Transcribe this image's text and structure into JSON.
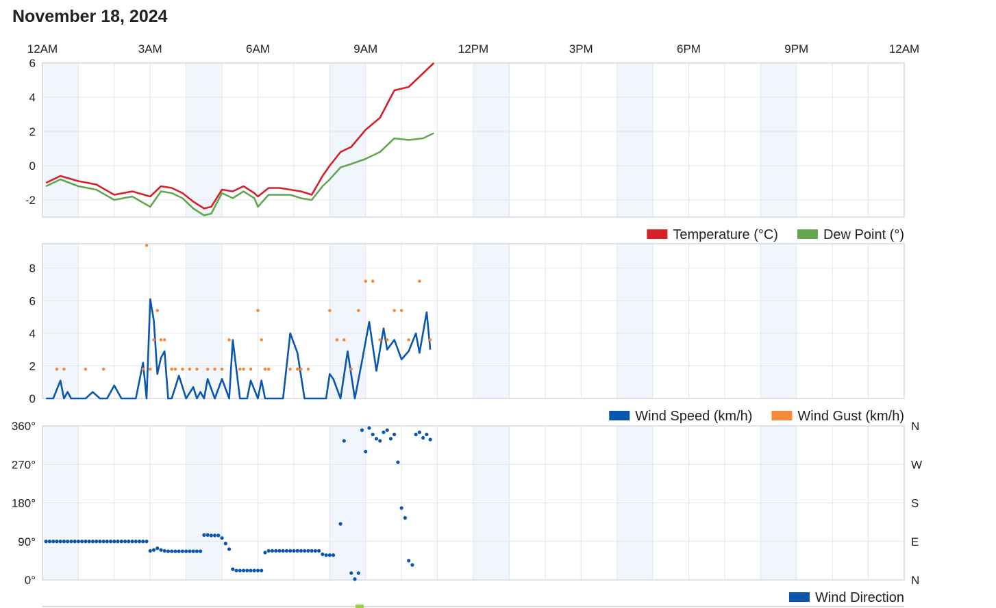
{
  "page": {
    "title": "November 18, 2024"
  },
  "colors": {
    "temperature": "#d42027",
    "dew_point": "#64a550",
    "wind_speed": "#0a56ad",
    "wind_gust": "#f58a3c",
    "wind_direction": "#0a56ad",
    "band": "#f0f6fb",
    "grid": "#e2e5e9",
    "border": "#d6d9dd"
  },
  "chart_data": [
    {
      "type": "line",
      "xlim": [
        0,
        24
      ],
      "x_ticks": [
        0,
        3,
        6,
        9,
        12,
        15,
        18,
        21,
        24
      ],
      "x_tick_labels": [
        "12AM",
        "3AM",
        "6AM",
        "9AM",
        "12PM",
        "3PM",
        "6PM",
        "9PM",
        "12AM"
      ],
      "ylim": [
        -3,
        6
      ],
      "y_ticks": [
        -2,
        0,
        2,
        4,
        6
      ],
      "y_tick_labels": [
        "-2",
        "0",
        "2",
        "4",
        "6"
      ],
      "legend": [
        "Temperature (°C)",
        "Dew Point (°)"
      ],
      "legend_position": "bottom-right",
      "series": [
        {
          "name": "Temperature (°C)",
          "x": [
            0.1,
            0.5,
            1.0,
            1.5,
            2.0,
            2.5,
            3.0,
            3.3,
            3.6,
            3.9,
            4.2,
            4.5,
            4.7,
            5.0,
            5.3,
            5.6,
            5.9,
            6.0,
            6.3,
            6.6,
            6.9,
            7.2,
            7.5,
            7.8,
            8.0,
            8.3,
            8.6,
            9.0,
            9.4,
            9.8,
            10.2,
            10.6,
            10.9
          ],
          "y": [
            -1.0,
            -0.6,
            -0.9,
            -1.1,
            -1.7,
            -1.5,
            -1.8,
            -1.2,
            -1.3,
            -1.6,
            -2.1,
            -2.5,
            -2.4,
            -1.4,
            -1.5,
            -1.2,
            -1.6,
            -1.8,
            -1.3,
            -1.3,
            -1.4,
            -1.5,
            -1.7,
            -0.6,
            0.0,
            0.8,
            1.1,
            2.1,
            2.8,
            4.4,
            4.6,
            5.4,
            6.0
          ]
        },
        {
          "name": "Dew Point (°)",
          "x": [
            0.1,
            0.5,
            1.0,
            1.5,
            2.0,
            2.5,
            3.0,
            3.3,
            3.6,
            3.9,
            4.2,
            4.5,
            4.7,
            5.0,
            5.3,
            5.6,
            5.9,
            6.0,
            6.3,
            6.6,
            6.9,
            7.2,
            7.5,
            7.8,
            8.0,
            8.3,
            8.6,
            9.0,
            9.4,
            9.8,
            10.2,
            10.6,
            10.9
          ],
          "y": [
            -1.2,
            -0.8,
            -1.2,
            -1.4,
            -2.0,
            -1.8,
            -2.4,
            -1.5,
            -1.6,
            -1.9,
            -2.5,
            -2.9,
            -2.8,
            -1.6,
            -1.9,
            -1.5,
            -1.9,
            -2.4,
            -1.7,
            -1.7,
            -1.7,
            -1.9,
            -2.0,
            -1.2,
            -0.8,
            -0.1,
            0.1,
            0.4,
            0.8,
            1.6,
            1.5,
            1.6,
            1.9
          ]
        }
      ]
    },
    {
      "type": "line",
      "xlim": [
        0,
        24
      ],
      "x_ticks": [
        0,
        3,
        6,
        9,
        12,
        15,
        18,
        21,
        24
      ],
      "ylim": [
        0,
        9.5
      ],
      "y_ticks": [
        0,
        2,
        4,
        6,
        8
      ],
      "y_tick_labels": [
        "0",
        "2",
        "4",
        "6",
        "8"
      ],
      "legend": [
        "Wind Speed (km/h)",
        "Wind Gust (km/h)"
      ],
      "legend_position": "bottom-right",
      "series": [
        {
          "name": "Wind Speed (km/h)",
          "style": "line",
          "x": [
            0.1,
            0.3,
            0.5,
            0.6,
            0.7,
            0.8,
            1.0,
            1.2,
            1.4,
            1.6,
            1.8,
            2.0,
            2.2,
            2.4,
            2.6,
            2.8,
            2.9,
            3.0,
            3.1,
            3.2,
            3.3,
            3.4,
            3.5,
            3.6,
            3.8,
            4.0,
            4.2,
            4.3,
            4.4,
            4.5,
            4.6,
            4.8,
            5.0,
            5.2,
            5.3,
            5.5,
            5.7,
            5.8,
            6.0,
            6.1,
            6.2,
            6.3,
            6.5,
            6.7,
            6.9,
            7.1,
            7.3,
            7.5,
            7.7,
            7.9,
            8.0,
            8.1,
            8.3,
            8.5,
            8.7,
            8.9,
            9.1,
            9.3,
            9.5,
            9.6,
            9.8,
            10.0,
            10.2,
            10.4,
            10.5,
            10.7,
            10.8
          ],
          "y": [
            0,
            0,
            1.1,
            0,
            0.4,
            0,
            0,
            0,
            0.4,
            0,
            0,
            0.8,
            0,
            0,
            0,
            2.2,
            0,
            6.1,
            4.8,
            1.5,
            2.5,
            2.9,
            0,
            0,
            1.4,
            0,
            0.7,
            0,
            0.4,
            0,
            1.2,
            0,
            1.2,
            0,
            3.6,
            0,
            0,
            1.1,
            0,
            1.1,
            0,
            0,
            0,
            0,
            4.0,
            2.8,
            0,
            0,
            0,
            0,
            1.5,
            1.2,
            0,
            2.9,
            0,
            2.3,
            4.7,
            1.7,
            4.3,
            3.0,
            3.6,
            2.4,
            2.9,
            4.0,
            2.8,
            5.3,
            3.0
          ]
        },
        {
          "name": "Wind Gust (km/h)",
          "style": "dots",
          "x": [
            0.4,
            0.6,
            1.2,
            1.7,
            2.8,
            2.9,
            3.0,
            3.1,
            3.2,
            3.3,
            3.4,
            3.6,
            3.7,
            3.9,
            4.1,
            4.3,
            4.6,
            4.8,
            5.0,
            5.2,
            5.5,
            5.6,
            5.8,
            6.0,
            6.1,
            6.2,
            6.3,
            6.9,
            7.1,
            7.2,
            7.4,
            8.0,
            8.2,
            8.4,
            8.6,
            8.8,
            9.0,
            9.2,
            9.4,
            9.6,
            9.8,
            10.0,
            10.2,
            10.5,
            10.8
          ],
          "y": [
            1.8,
            1.8,
            1.8,
            1.8,
            1.8,
            9.4,
            1.8,
            3.6,
            5.4,
            3.6,
            3.6,
            1.8,
            1.8,
            1.8,
            1.8,
            1.8,
            1.8,
            1.8,
            1.8,
            3.6,
            1.8,
            1.8,
            1.8,
            5.4,
            3.6,
            1.8,
            1.8,
            1.8,
            1.8,
            1.8,
            1.8,
            5.4,
            3.6,
            3.6,
            1.8,
            5.4,
            7.2,
            7.2,
            3.6,
            3.6,
            5.4,
            5.4,
            3.6,
            7.2,
            3.6
          ]
        }
      ]
    },
    {
      "type": "scatter",
      "xlim": [
        0,
        24
      ],
      "x_ticks": [
        0,
        3,
        6,
        9,
        12,
        15,
        18,
        21,
        24
      ],
      "ylim": [
        0,
        360
      ],
      "y_ticks": [
        0,
        90,
        180,
        270,
        360
      ],
      "y_tick_labels": [
        "0°",
        "90°",
        "180°",
        "270°",
        "360°"
      ],
      "y2_tick_labels": [
        "N",
        "E",
        "S",
        "W",
        "N"
      ],
      "legend": [
        "Wind Direction"
      ],
      "legend_position": "bottom-right",
      "series": [
        {
          "name": "Wind Direction",
          "x": [
            0.1,
            0.2,
            0.3,
            0.4,
            0.5,
            0.6,
            0.7,
            0.8,
            0.9,
            1.0,
            1.1,
            1.2,
            1.3,
            1.4,
            1.5,
            1.6,
            1.7,
            1.8,
            1.9,
            2.0,
            2.1,
            2.2,
            2.3,
            2.4,
            2.5,
            2.6,
            2.7,
            2.8,
            2.9,
            3.0,
            3.1,
            3.2,
            3.3,
            3.4,
            3.5,
            3.6,
            3.7,
            3.8,
            3.9,
            4.0,
            4.1,
            4.2,
            4.3,
            4.4,
            4.5,
            4.6,
            4.7,
            4.8,
            4.9,
            5.0,
            5.1,
            5.2,
            5.3,
            5.4,
            5.5,
            5.6,
            5.7,
            5.8,
            5.9,
            6.0,
            6.1,
            6.2,
            6.3,
            6.4,
            6.5,
            6.6,
            6.7,
            6.8,
            6.9,
            7.0,
            7.1,
            7.2,
            7.3,
            7.4,
            7.5,
            7.6,
            7.7,
            7.8,
            7.9,
            8.0,
            8.1,
            8.3,
            8.4,
            8.6,
            8.7,
            8.8,
            8.9,
            9.0,
            9.1,
            9.2,
            9.3,
            9.4,
            9.5,
            9.6,
            9.7,
            9.8,
            9.9,
            10.0,
            10.1,
            10.2,
            10.3,
            10.4,
            10.5,
            10.6,
            10.7,
            10.8
          ],
          "y": [
            90,
            90,
            90,
            90,
            90,
            90,
            90,
            90,
            90,
            90,
            90,
            90,
            90,
            90,
            90,
            90,
            90,
            90,
            90,
            90,
            90,
            90,
            90,
            90,
            90,
            90,
            90,
            90,
            90,
            68,
            70,
            74,
            70,
            68,
            67,
            67,
            67,
            67,
            67,
            67,
            67,
            67,
            67,
            67,
            105,
            105,
            104,
            104,
            104,
            98,
            85,
            72,
            25,
            22,
            22,
            22,
            22,
            22,
            22,
            22,
            22,
            64,
            68,
            68,
            68,
            68,
            68,
            68,
            68,
            68,
            68,
            68,
            68,
            68,
            68,
            68,
            68,
            60,
            58,
            58,
            58,
            131,
            325,
            16,
            2,
            16,
            350,
            300,
            355,
            340,
            330,
            325,
            345,
            350,
            330,
            340,
            275,
            168,
            145,
            45,
            35,
            340,
            345,
            332,
            340,
            328
          ]
        }
      ]
    }
  ]
}
